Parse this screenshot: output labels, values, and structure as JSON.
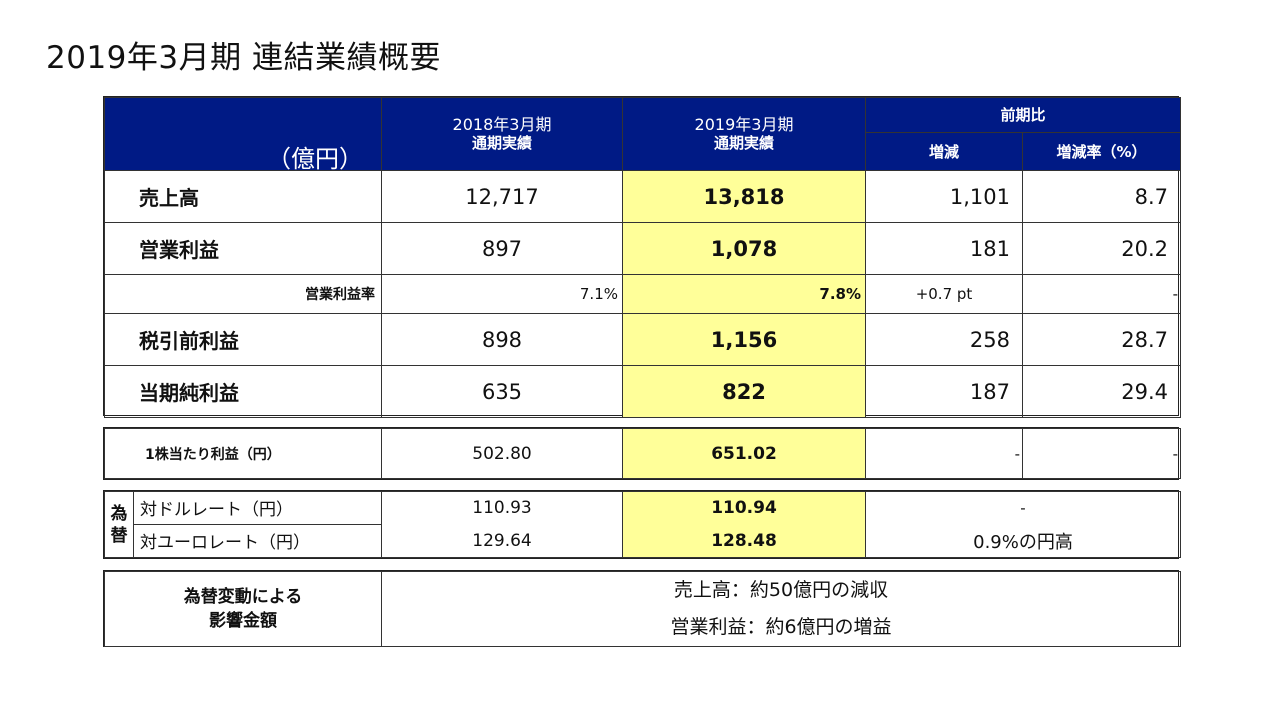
{
  "title": "2019年3月期 連結業績概要",
  "header": {
    "unit": "（億円）",
    "col1_line1": "2018年3月期",
    "col1_line2": "通期実績",
    "col2_line1": "2019年3月期",
    "col2_line2": "通期実績",
    "compare": "前期比",
    "diff": "増減",
    "rate": "増減率（%）"
  },
  "rows": [
    {
      "label": "売上高",
      "prev": "12,717",
      "curr": "13,818",
      "diff": "1,101",
      "rate": "8.7"
    },
    {
      "label": "営業利益",
      "prev": "897",
      "curr": "1,078",
      "diff": "181",
      "rate": "20.2"
    },
    {
      "label": "営業利益率",
      "prev": "7.1%",
      "curr": "7.8%",
      "diff": "+0.7 pt",
      "rate": "-"
    },
    {
      "label": "税引前利益",
      "prev": "898",
      "curr": "1,156",
      "diff": "258",
      "rate": "28.7"
    },
    {
      "label": "当期純利益",
      "prev": "635",
      "curr": "822",
      "diff": "187",
      "rate": "29.4"
    }
  ],
  "eps": {
    "label": "1株当たり利益（円）",
    "prev": "502.80",
    "curr": "651.02",
    "diff": "-",
    "rate": "-"
  },
  "fx": {
    "group_label_1": "為",
    "group_label_2": "替",
    "usd_label": "対ドルレート（円）",
    "usd_prev": "110.93",
    "usd_curr": "110.94",
    "usd_diff": "-",
    "eur_label": "対ユーロレート（円）",
    "eur_prev": "129.64",
    "eur_curr": "128.48",
    "eur_diff": "0.9%の円高"
  },
  "impact": {
    "label_1": "為替変動による",
    "label_2": "影響金額",
    "line_1": "売上高：約50億円の減収",
    "line_2": "営業利益：約6億円の増益"
  },
  "colors": {
    "header_bg": "#001a85",
    "highlight": "#ffff99"
  }
}
